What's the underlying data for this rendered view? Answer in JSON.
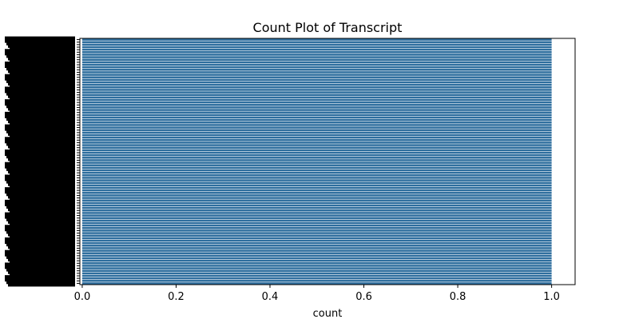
{
  "chart_data": {
    "type": "bar",
    "orientation": "horizontal",
    "title": "Count Plot of Transcript",
    "xlabel": "count",
    "ylabel": "",
    "xlim": [
      -0.005,
      1.05
    ],
    "xticks": [
      "0.0",
      "0.2",
      "0.4",
      "0.6",
      "0.8",
      "1.0"
    ],
    "category_count": 98,
    "values_all_equal": 1,
    "bar_color": "#2e6e9e",
    "category_label_color": "#000000",
    "grid": false,
    "legend": "none"
  }
}
